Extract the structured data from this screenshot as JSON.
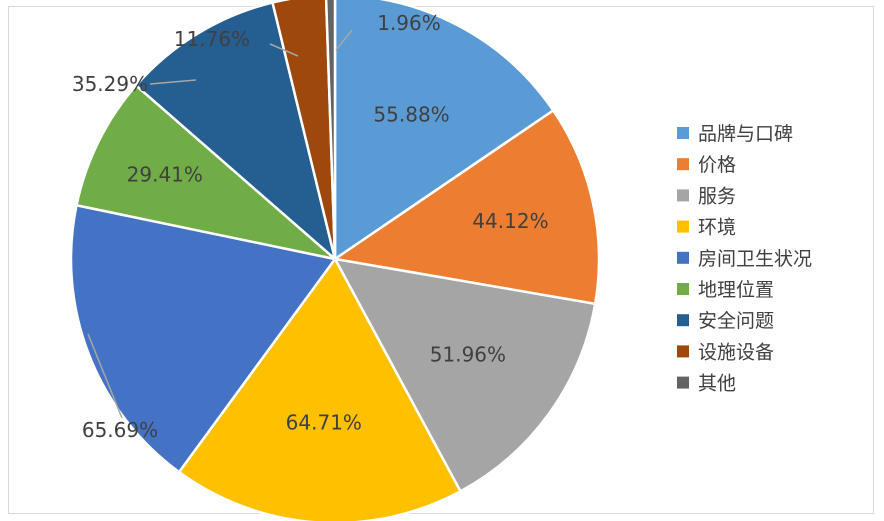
{
  "chart_data": {
    "type": "pie",
    "title": "",
    "legend_position": "right",
    "slices": [
      {
        "label": "品牌与口碑",
        "value": 55.88,
        "display": "55.88%",
        "color": "#5B9BD5"
      },
      {
        "label": "价格",
        "value": 44.12,
        "display": "44.12%",
        "color": "#ED7D31"
      },
      {
        "label": "服务",
        "value": 51.96,
        "display": "51.96%",
        "color": "#A5A5A5"
      },
      {
        "label": "环境",
        "value": 64.71,
        "display": "64.71%",
        "color": "#FFC000"
      },
      {
        "label": "房间卫生状况",
        "value": 65.69,
        "display": "65.69%",
        "color": "#4472C4"
      },
      {
        "label": "地理位置",
        "value": 29.41,
        "display": "29.41%",
        "color": "#70AD47"
      },
      {
        "label": "安全问题",
        "value": 35.29,
        "display": "35.29%",
        "color": "#255E91"
      },
      {
        "label": "设施设备",
        "value": 11.76,
        "display": "11.76%",
        "color": "#9E480E"
      },
      {
        "label": "其他",
        "value": 1.96,
        "display": "1.96%",
        "color": "#636363"
      }
    ]
  }
}
